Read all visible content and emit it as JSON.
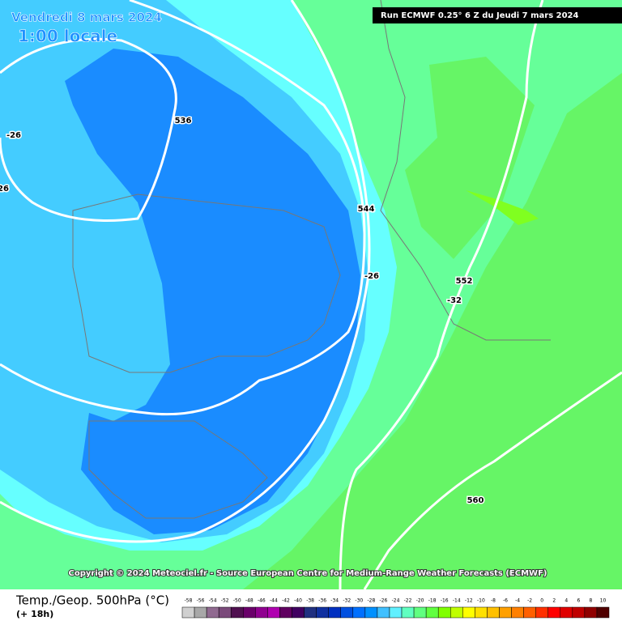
{
  "header": {
    "date": "Vendredi 8 mars 2024",
    "time": "1:00 locale",
    "run": "Run ECMWF 0.25° 6 Z du Jeudi 7 mars 2024"
  },
  "contour_labels": [
    "536",
    "544",
    "552",
    "560",
    "-26",
    "26",
    "-26",
    "-32"
  ],
  "copyright": "Copyright © 2024 Meteociel.fr - Source European Centre for Medium-Range Weather Forecasts (ECMWF)",
  "legend": {
    "title": "Temp./Geop. 500hPa (°C)",
    "lead": "(+ 18h)",
    "values": [
      -58,
      -56,
      -54,
      -52,
      -50,
      -48,
      -46,
      -44,
      -42,
      -40,
      -38,
      -36,
      -34,
      -32,
      -30,
      -28,
      -26,
      -24,
      -22,
      -20,
      -18,
      -16,
      -14,
      -12,
      -10,
      -8,
      -6,
      -4,
      -2,
      0,
      2,
      4,
      6,
      8,
      10
    ],
    "colors": [
      "#d0d0d0",
      "#a8a8a8",
      "#906a90",
      "#7a4a7a",
      "#501050",
      "#6a006a",
      "#900090",
      "#b000b0",
      "#600060",
      "#400060",
      "#203080",
      "#1030a0",
      "#0030c0",
      "#0050e0",
      "#0070ff",
      "#0090ff",
      "#40c0ff",
      "#60f0ff",
      "#60ffc0",
      "#60ff80",
      "#60ff40",
      "#80ff00",
      "#c0ff00",
      "#ffff00",
      "#ffe000",
      "#ffc000",
      "#ffa000",
      "#ff8000",
      "#ff6000",
      "#ff3000",
      "#ff0000",
      "#e00000",
      "#c00000",
      "#900000",
      "#500000"
    ]
  }
}
